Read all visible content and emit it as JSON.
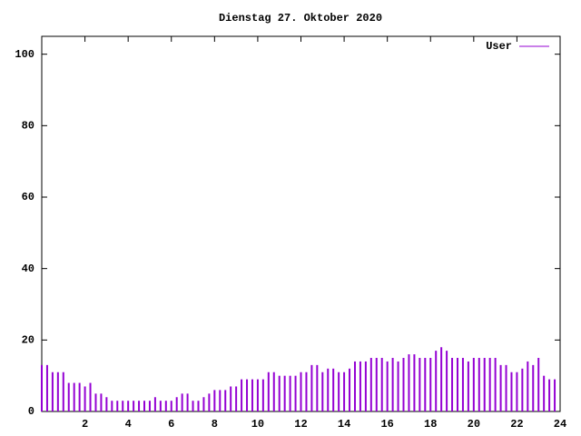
{
  "chart_data": {
    "type": "impulse",
    "title": "Dienstag 27. Oktober 2020",
    "xlim": [
      0,
      24
    ],
    "xticks": [
      2,
      4,
      6,
      8,
      10,
      12,
      14,
      16,
      18,
      20,
      22,
      24
    ],
    "ylim": [
      0,
      105
    ],
    "yticks": [
      0,
      20,
      40,
      60,
      80,
      100
    ],
    "legend": "top-right",
    "x": [
      0,
      0.25,
      0.5,
      0.75,
      1,
      1.25,
      1.5,
      1.75,
      2,
      2.25,
      2.5,
      2.75,
      3,
      3.25,
      3.5,
      3.75,
      4,
      4.25,
      4.5,
      4.75,
      5,
      5.25,
      5.5,
      5.75,
      6,
      6.25,
      6.5,
      6.75,
      7,
      7.25,
      7.5,
      7.75,
      8,
      8.25,
      8.5,
      8.75,
      9,
      9.25,
      9.5,
      9.75,
      10,
      10.25,
      10.5,
      10.75,
      11,
      11.25,
      11.5,
      11.75,
      12,
      12.25,
      12.5,
      12.75,
      13,
      13.25,
      13.5,
      13.75,
      14,
      14.25,
      14.5,
      14.75,
      15,
      15.25,
      15.5,
      15.75,
      16,
      16.25,
      16.5,
      16.75,
      17,
      17.25,
      17.5,
      17.75,
      18,
      18.25,
      18.5,
      18.75,
      19,
      19.25,
      19.5,
      19.75,
      20,
      20.25,
      20.5,
      20.75,
      21,
      21.25,
      21.5,
      21.75,
      22,
      22.25,
      22.5,
      22.75,
      23,
      23.25,
      23.5,
      23.75
    ],
    "series": [
      {
        "name": "User",
        "color": "#9400d3",
        "values": [
          13,
          13,
          11,
          11,
          11,
          8,
          8,
          8,
          7,
          8,
          5,
          5,
          4,
          3,
          3,
          3,
          3,
          3,
          3,
          3,
          3,
          4,
          3,
          3,
          3,
          4,
          5,
          5,
          3,
          3,
          4,
          5,
          6,
          6,
          6,
          7,
          7,
          9,
          9,
          9,
          9,
          9,
          11,
          11,
          10,
          10,
          10,
          10,
          11,
          11,
          13,
          13,
          11,
          12,
          12,
          11,
          11,
          12,
          14,
          14,
          14,
          15,
          15,
          15,
          14,
          15,
          14,
          15,
          16,
          16,
          15,
          15,
          15,
          17,
          18,
          17,
          15,
          15,
          15,
          14,
          15,
          15,
          15,
          15,
          15,
          13,
          13,
          11,
          11,
          12,
          14,
          13,
          15,
          10,
          9,
          9
        ]
      }
    ]
  }
}
